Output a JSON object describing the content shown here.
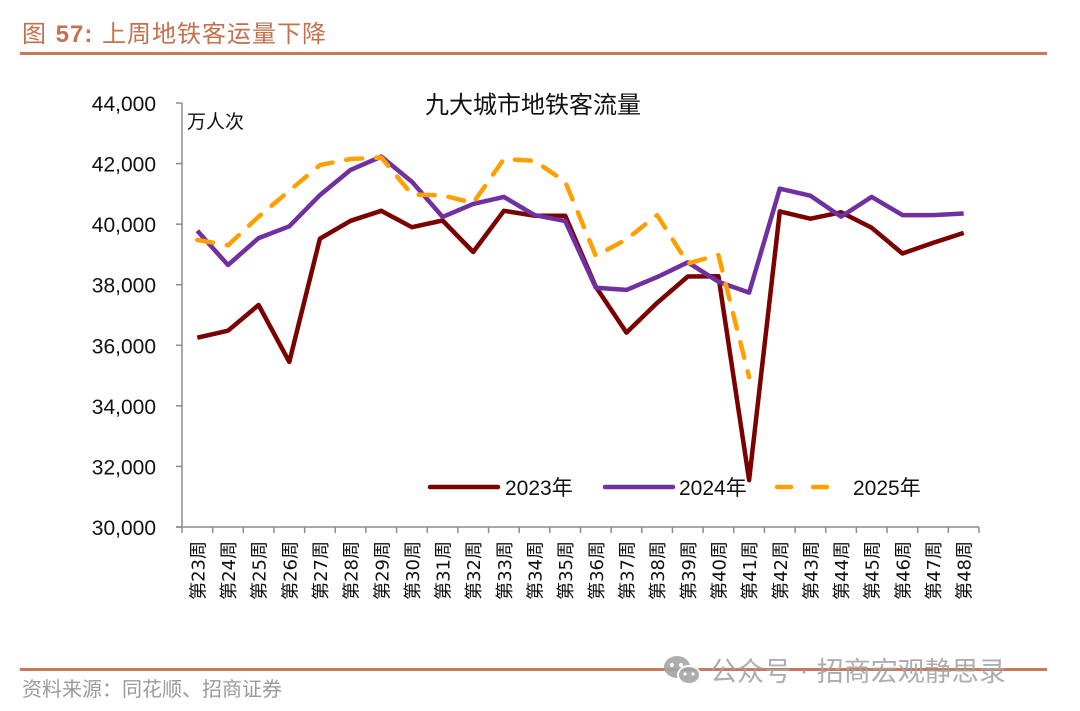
{
  "figure": {
    "label_prefix": "图 ",
    "number": "57:",
    "caption": " 上周地铁客运量下降",
    "source": "资料来源：同花顺、招商证券",
    "watermark": "公众号 · 招商宏观静思录",
    "watermark_icon": "wechat-icon",
    "accent_color": "#C9795B"
  },
  "chart_data": {
    "type": "line",
    "title": "九大城市地铁客流量",
    "ylabel": "万人次",
    "xlabel": "",
    "ylim": [
      30000,
      44000
    ],
    "yticks": [
      30000,
      32000,
      34000,
      36000,
      38000,
      40000,
      42000,
      44000
    ],
    "ytick_labels": [
      "30,000",
      "32,000",
      "34,000",
      "36,000",
      "38,000",
      "40,000",
      "42,000",
      "44,000"
    ],
    "grid": false,
    "legend_position": "bottom-center-inside",
    "categories": [
      "第23周",
      "第24周",
      "第25周",
      "第26周",
      "第27周",
      "第28周",
      "第29周",
      "第30周",
      "第31周",
      "第32周",
      "第33周",
      "第34周",
      "第35周",
      "第36周",
      "第37周",
      "第38周",
      "第39周",
      "第40周",
      "第41周",
      "第42周",
      "第43周",
      "第44周",
      "第45周",
      "第46周",
      "第47周",
      "第48周"
    ],
    "series": [
      {
        "name": "2023年",
        "color": "#7B0000",
        "dash": false,
        "values": [
          36250,
          36480,
          37330,
          35450,
          39520,
          40110,
          40440,
          39900,
          40120,
          39080,
          40440,
          40280,
          40280,
          37930,
          36420,
          37400,
          38270,
          38280,
          31550,
          40420,
          40180,
          40390,
          39880,
          39030,
          39380,
          39710
        ]
      },
      {
        "name": "2024年",
        "color": "#7030A0",
        "dash": false,
        "values": [
          39780,
          38650,
          39540,
          39930,
          40960,
          41790,
          42230,
          41400,
          40240,
          40670,
          40900,
          40300,
          40100,
          37900,
          37830,
          38250,
          38740,
          38100,
          37740,
          41170,
          40940,
          40250,
          40900,
          40300,
          40300,
          40350
        ]
      },
      {
        "name": "2025年",
        "color": "#FFA000",
        "dash": true,
        "values": [
          39480,
          39300,
          40250,
          41100,
          41950,
          42150,
          42200,
          40980,
          40950,
          40700,
          42150,
          42090,
          41400,
          38950,
          39500,
          40300,
          38700,
          38980,
          34950,
          null,
          null,
          null,
          null,
          null,
          null,
          null
        ]
      }
    ]
  }
}
